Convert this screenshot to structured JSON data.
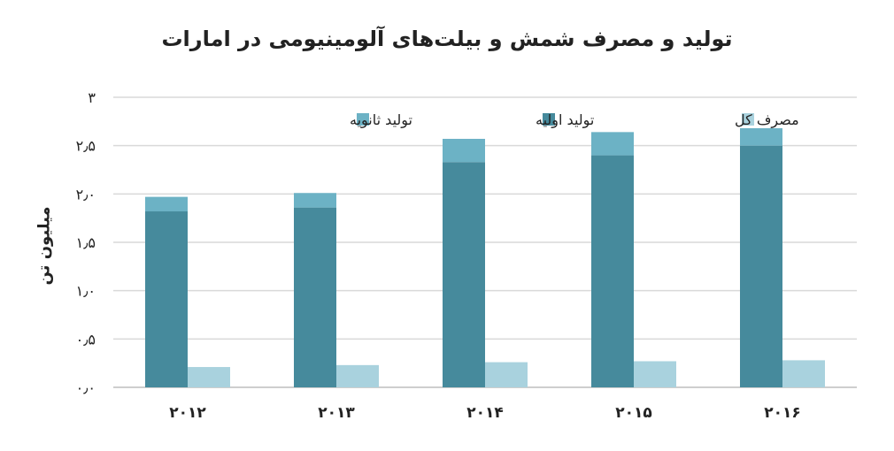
{
  "chart_data": {
    "type": "bar",
    "title": "تولید و مصرف شمش و بیلت‌های آلومینیومی در امارات",
    "ylabel": "میلیون تن",
    "categories": [
      "۲۰۱۲",
      "۲۰۱۳",
      "۲۰۱۴",
      "۲۰۱۵",
      "۲۰۱۶"
    ],
    "ylim": [
      0,
      3
    ],
    "yticks": [
      0,
      0.5,
      1,
      1.5,
      2,
      2.5,
      3
    ],
    "ytick_labels": [
      "۰٫۰",
      "۰٫۵",
      "۱٫۰",
      "۱٫۵",
      "۲٫۰",
      "۲٫۵",
      "۳"
    ],
    "grid": true,
    "legend_position": "top",
    "series": [
      {
        "name": "تولید اولیه",
        "stack": "production",
        "color": "#468a9c",
        "values": [
          1.82,
          1.86,
          2.33,
          2.4,
          2.5
        ]
      },
      {
        "name": "تولید ثانویه",
        "stack": "production",
        "color": "#6cb2c5",
        "values": [
          0.15,
          0.15,
          0.24,
          0.24,
          0.18
        ]
      },
      {
        "name": "مصرف کل",
        "stack": "consumption",
        "color": "#a9d2de",
        "values": [
          0.21,
          0.23,
          0.26,
          0.27,
          0.28
        ]
      }
    ]
  }
}
